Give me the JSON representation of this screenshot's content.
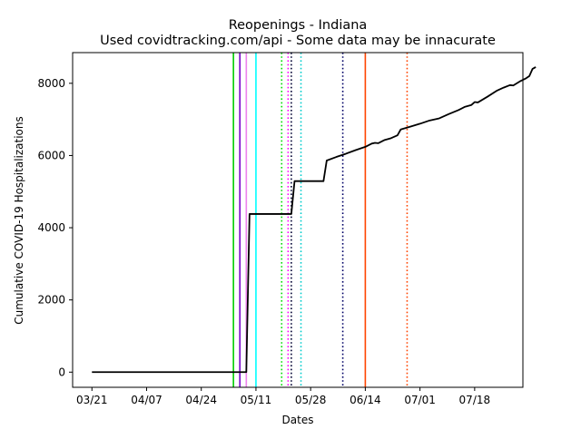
{
  "chart_data": {
    "type": "line",
    "title": "Reopenings - Indiana",
    "subtitle": "Used covidtracking.com/api - Some data may be innacurate",
    "xlabel": "Dates",
    "ylabel": "Cumulative COVID-19 Hospitalizations",
    "x_ticks": [
      "03/21",
      "04/07",
      "04/24",
      "05/11",
      "05/28",
      "06/14",
      "07/01",
      "07/18"
    ],
    "y_ticks": [
      0,
      2000,
      4000,
      6000,
      8000
    ],
    "xlim": [
      "2020-03-15",
      "2020-08-02"
    ],
    "ylim": [
      -420,
      8850
    ],
    "grid": false,
    "series": [
      {
        "color": "#000000",
        "points": [
          {
            "x": "2020-03-21",
            "y": 0
          },
          {
            "x": "2020-05-08",
            "y": 0
          },
          {
            "x": "2020-05-09",
            "y": 4380
          },
          {
            "x": "2020-05-22",
            "y": 4380
          },
          {
            "x": "2020-05-23",
            "y": 5290
          },
          {
            "x": "2020-06-01",
            "y": 5290
          },
          {
            "x": "2020-06-02",
            "y": 5860
          },
          {
            "x": "2020-06-05",
            "y": 5960
          },
          {
            "x": "2020-06-08",
            "y": 6050
          },
          {
            "x": "2020-06-11",
            "y": 6150
          },
          {
            "x": "2020-06-14",
            "y": 6240
          },
          {
            "x": "2020-06-16",
            "y": 6330
          },
          {
            "x": "2020-06-17",
            "y": 6350
          },
          {
            "x": "2020-06-18",
            "y": 6340
          },
          {
            "x": "2020-06-20",
            "y": 6430
          },
          {
            "x": "2020-06-22",
            "y": 6480
          },
          {
            "x": "2020-06-24",
            "y": 6560
          },
          {
            "x": "2020-06-25",
            "y": 6720
          },
          {
            "x": "2020-06-28",
            "y": 6800
          },
          {
            "x": "2020-07-01",
            "y": 6880
          },
          {
            "x": "2020-07-04",
            "y": 6970
          },
          {
            "x": "2020-07-07",
            "y": 7030
          },
          {
            "x": "2020-07-10",
            "y": 7150
          },
          {
            "x": "2020-07-13",
            "y": 7260
          },
          {
            "x": "2020-07-15",
            "y": 7350
          },
          {
            "x": "2020-07-17",
            "y": 7400
          },
          {
            "x": "2020-07-18",
            "y": 7480
          },
          {
            "x": "2020-07-19",
            "y": 7470
          },
          {
            "x": "2020-07-22",
            "y": 7630
          },
          {
            "x": "2020-07-25",
            "y": 7800
          },
          {
            "x": "2020-07-27",
            "y": 7880
          },
          {
            "x": "2020-07-29",
            "y": 7950
          },
          {
            "x": "2020-07-30",
            "y": 7940
          },
          {
            "x": "2020-08-01",
            "y": 8050
          },
          {
            "x": "2020-08-03",
            "y": 8140
          },
          {
            "x": "2020-08-04",
            "y": 8200
          },
          {
            "x": "2020-08-05",
            "y": 8400
          },
          {
            "x": "2020-08-06",
            "y": 8450
          }
        ]
      }
    ],
    "vlines": [
      {
        "x": "2020-05-04",
        "color": "#00cc00",
        "style": "solid"
      },
      {
        "x": "2020-05-06",
        "color": "#7700cc",
        "style": "solid"
      },
      {
        "x": "2020-05-08",
        "color": "#ee82ee",
        "style": "solid"
      },
      {
        "x": "2020-05-11",
        "color": "#00ffff",
        "style": "solid"
      },
      {
        "x": "2020-05-19",
        "color": "#00dd00",
        "style": "dotted"
      },
      {
        "x": "2020-05-21",
        "color": "#ff00ff",
        "style": "dotted"
      },
      {
        "x": "2020-05-22",
        "color": "#000033",
        "style": "dotted"
      },
      {
        "x": "2020-05-25",
        "color": "#00cccc",
        "style": "dotted"
      },
      {
        "x": "2020-06-07",
        "color": "#000066",
        "style": "dotted"
      },
      {
        "x": "2020-06-14",
        "color": "#ff4400",
        "style": "solid"
      },
      {
        "x": "2020-06-27",
        "color": "#ff4400",
        "style": "dotted"
      }
    ]
  }
}
